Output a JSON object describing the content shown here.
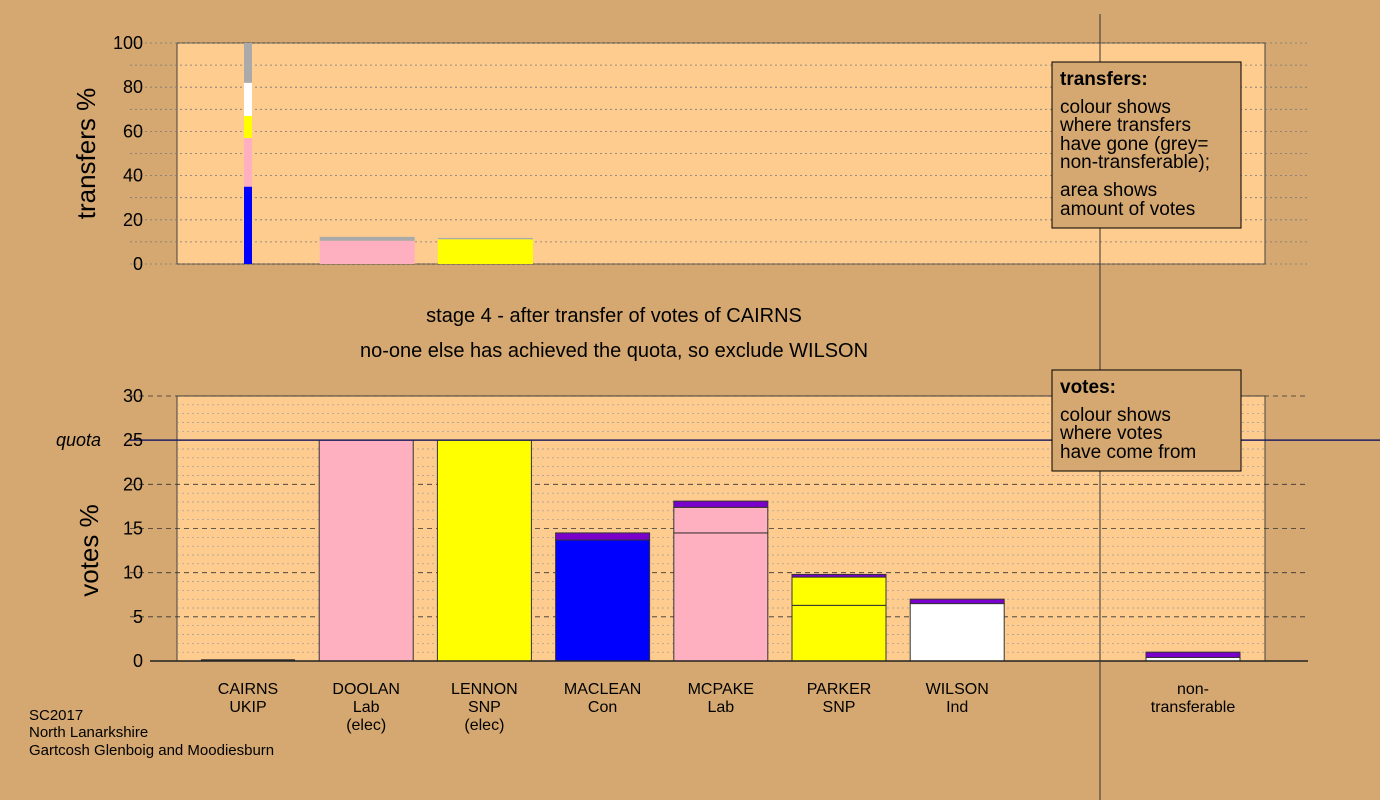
{
  "colors": {
    "background": "#d4a870",
    "plot_area": "#ffcc90",
    "UKIP": "#7a00cc",
    "Lab": "#ffb0c0",
    "SNP": "#ffff00",
    "Con": "#0000ff",
    "Ind": "#ffffff",
    "non-transferable": "#aaaaaa",
    "quota_line": "#202060"
  },
  "stage_text": {
    "line1": "stage 4 - after transfer of votes of CAIRNS",
    "line2": "no-one else has achieved the quota, so exclude WILSON"
  },
  "footer": {
    "line1": "SC2017",
    "line2": "North Lanarkshire",
    "line3": "Gartcosh Glenboig and Moodiesburn"
  },
  "legend_transfers": {
    "title": "transfers:",
    "lines": [
      "colour shows",
      "where transfers",
      "have gone (grey=",
      "non-transferable);",
      "area shows",
      "amount of votes"
    ]
  },
  "legend_votes": {
    "title": "votes:",
    "lines": [
      "colour shows",
      "where votes",
      "have come from"
    ]
  },
  "chart_data": [
    {
      "type": "bar",
      "ylabel": "transfers %",
      "ylim": [
        0,
        100
      ],
      "yticks": [
        "0",
        "20",
        "40",
        "60",
        "80",
        "100"
      ],
      "transfer_source": {
        "name": "CAIRNS",
        "segments": [
          {
            "to": "Con",
            "value": 35
          },
          {
            "to": "Lab",
            "value": 22
          },
          {
            "to": "SNP",
            "value": 10
          },
          {
            "to": "Ind",
            "value": 15
          },
          {
            "to": "non-transferable",
            "value": 18
          }
        ]
      },
      "candidates": [
        {
          "name": "CAIRNS",
          "stack": []
        },
        {
          "name": "DOOLAN",
          "stack": [
            {
              "from": "Lab",
              "value": 10.5
            },
            {
              "from": "non-transferable",
              "value": 1.8
            }
          ]
        },
        {
          "name": "LENNON",
          "stack": [
            {
              "from": "SNP",
              "value": 11.2
            },
            {
              "from": "non-transferable",
              "value": 0.6
            }
          ]
        }
      ]
    },
    {
      "type": "bar",
      "ylabel": "votes %",
      "ylim": [
        0,
        30
      ],
      "yticks": [
        "0",
        "5",
        "10",
        "15",
        "20",
        "25",
        "30"
      ],
      "quota": 25,
      "quota_label": "quota",
      "categories": [
        {
          "name": "CAIRNS",
          "party": "UKIP",
          "note": "",
          "stack": []
        },
        {
          "name": "DOOLAN",
          "party": "Lab",
          "note": "(elec)",
          "stack": [
            {
              "from": "Lab",
              "value": 25
            }
          ]
        },
        {
          "name": "LENNON",
          "party": "SNP",
          "note": "(elec)",
          "stack": [
            {
              "from": "SNP",
              "value": 25
            }
          ]
        },
        {
          "name": "MACLEAN",
          "party": "Con",
          "note": "",
          "stack": [
            {
              "from": "Con",
              "value": 13.7
            },
            {
              "from": "UKIP",
              "value": 0.8
            }
          ]
        },
        {
          "name": "MCPAKE",
          "party": "Lab",
          "note": "",
          "stack": [
            {
              "from": "Lab",
              "value": 14.5
            },
            {
              "from": "Lab",
              "value": 2.9
            },
            {
              "from": "UKIP",
              "value": 0.7
            }
          ]
        },
        {
          "name": "PARKER",
          "party": "SNP",
          "note": "",
          "stack": [
            {
              "from": "SNP",
              "value": 6.3
            },
            {
              "from": "SNP",
              "value": 3.2
            },
            {
              "from": "UKIP",
              "value": 0.3
            }
          ]
        },
        {
          "name": "WILSON",
          "party": "Ind",
          "note": "",
          "stack": [
            {
              "from": "Ind",
              "value": 6.5
            },
            {
              "from": "UKIP",
              "value": 0.5
            }
          ]
        }
      ],
      "nontransferable": {
        "label1": "non-",
        "label2": "transferable",
        "stack": [
          {
            "from": "Ind",
            "value": 0.4
          },
          {
            "from": "UKIP",
            "value": 0.6
          }
        ]
      }
    }
  ]
}
